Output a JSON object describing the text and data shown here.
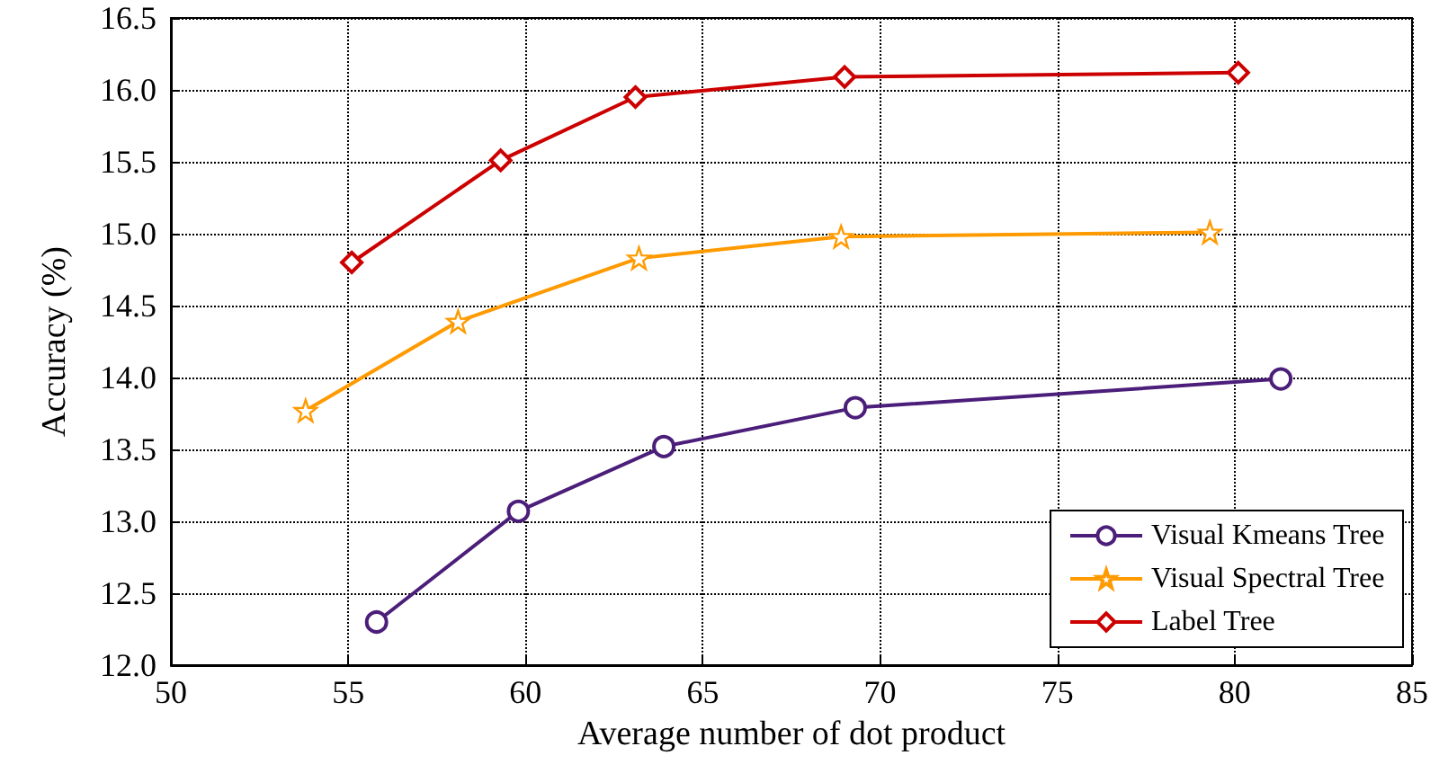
{
  "chart_data": {
    "type": "line",
    "xlabel": "Average number of dot product",
    "ylabel": "Accuracy (%)",
    "xlim": [
      50,
      85
    ],
    "xticks": [
      50,
      55,
      60,
      65,
      70,
      75,
      80,
      85
    ],
    "ylim": [
      12.0,
      16.5
    ],
    "yticks": [
      {
        "value": 12,
        "label": "12.0"
      },
      12.5,
      {
        "value": 13,
        "label": "13.0"
      },
      13.5,
      {
        "value": 14,
        "label": "14.0"
      },
      14.5,
      {
        "value": 15,
        "label": "15.0"
      },
      15.5,
      {
        "value": 16,
        "label": "16.0"
      },
      16.5
    ],
    "grid": true,
    "legend": "bottom right",
    "line_style": "solid",
    "series": [
      {
        "name": "Visual Kmeans Tree",
        "color": "#4b1e7a",
        "marker": "circle",
        "x": [
          55.8,
          59.8,
          63.9,
          69.3,
          81.3
        ],
        "values": [
          12.3,
          13.07,
          13.52,
          13.79,
          13.99
        ]
      },
      {
        "name": "Visual Spectral Tree",
        "color": "#ff9a00",
        "marker": "star",
        "x": [
          53.8,
          58.1,
          63.2,
          68.9,
          79.3
        ],
        "values": [
          13.77,
          14.39,
          14.83,
          14.98,
          15.01
        ]
      },
      {
        "name": "Label Tree",
        "color": "#cc0000",
        "marker": "diamond",
        "x": [
          55.1,
          59.3,
          63.1,
          69.0,
          80.1
        ],
        "values": [
          14.8,
          15.51,
          15.95,
          16.09,
          16.12
        ]
      }
    ]
  }
}
